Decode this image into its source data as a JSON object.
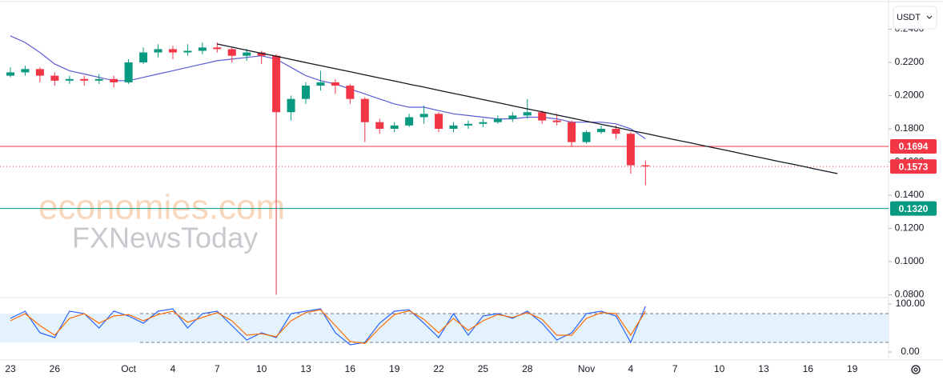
{
  "chart_data": {
    "type": "candlestick",
    "currency": "USDT",
    "watermark": [
      "economies.com",
      "FXNewsToday"
    ],
    "up_color": "#089981",
    "down_color": "#f23645",
    "categories": [
      "23",
      null,
      null,
      "26",
      null,
      null,
      null,
      null,
      "Oct",
      null,
      null,
      "4",
      null,
      null,
      "7",
      null,
      null,
      "10",
      null,
      null,
      "13",
      null,
      null,
      "16",
      null,
      null,
      "19",
      null,
      null,
      "22",
      null,
      null,
      "25",
      null,
      null,
      "28",
      null,
      null,
      null,
      "Nov",
      null,
      null,
      "4",
      null,
      null,
      "7",
      null,
      null,
      "10",
      null,
      null,
      "13",
      null,
      null,
      "16",
      null,
      null,
      "19"
    ],
    "open": [
      0.212,
      0.214,
      0.216,
      0.212,
      0.209,
      0.21,
      0.209,
      0.21,
      0.208,
      0.22,
      0.226,
      0.228,
      0.226,
      0.227,
      0.229,
      0.228,
      0.224,
      0.226,
      0.224,
      0.19,
      0.198,
      0.206,
      0.208,
      0.206,
      0.198,
      0.184,
      0.18,
      0.182,
      0.187,
      0.189,
      0.18,
      0.182,
      0.183,
      0.184,
      0.186,
      0.188,
      0.19,
      0.185,
      0.184,
      0.172,
      0.178,
      0.18,
      0.177,
      0.158,
      null,
      null,
      null,
      null,
      null,
      null,
      null,
      null,
      null,
      null,
      null,
      null,
      null,
      null
    ],
    "high": [
      0.217,
      0.218,
      0.217,
      0.214,
      0.212,
      0.212,
      0.213,
      0.212,
      0.222,
      0.229,
      0.231,
      0.23,
      0.231,
      0.232,
      0.232,
      0.229,
      0.228,
      0.227,
      0.225,
      0.2,
      0.208,
      0.215,
      0.21,
      0.207,
      0.199,
      0.186,
      0.184,
      0.189,
      0.194,
      0.19,
      0.184,
      0.185,
      0.186,
      0.188,
      0.19,
      0.198,
      0.191,
      0.189,
      0.185,
      0.179,
      0.182,
      0.182,
      0.178,
      0.161,
      null,
      null,
      null,
      null,
      null,
      null,
      null,
      null,
      null,
      null,
      null,
      null,
      null,
      null
    ],
    "low": [
      0.211,
      0.212,
      0.208,
      0.206,
      0.207,
      0.206,
      0.207,
      0.205,
      0.207,
      0.219,
      0.223,
      0.222,
      0.224,
      0.225,
      0.226,
      0.22,
      0.221,
      0.219,
      0.08,
      0.185,
      0.195,
      0.203,
      0.201,
      0.195,
      0.172,
      0.177,
      0.178,
      0.181,
      0.183,
      0.178,
      0.178,
      0.18,
      0.181,
      0.183,
      0.184,
      0.186,
      0.183,
      0.182,
      0.169,
      0.171,
      0.177,
      0.174,
      0.153,
      0.146,
      null,
      null,
      null,
      null,
      null,
      null,
      null,
      null,
      null,
      null,
      null,
      null,
      null,
      null
    ],
    "close": [
      0.214,
      0.216,
      0.212,
      0.209,
      0.21,
      0.209,
      0.21,
      0.208,
      0.22,
      0.226,
      0.228,
      0.226,
      0.227,
      0.229,
      0.228,
      0.224,
      0.226,
      0.224,
      0.19,
      0.198,
      0.206,
      0.208,
      0.206,
      0.198,
      0.184,
      0.18,
      0.182,
      0.187,
      0.189,
      0.18,
      0.182,
      0.183,
      0.184,
      0.186,
      0.188,
      0.19,
      0.185,
      0.184,
      0.172,
      0.178,
      0.18,
      0.177,
      0.158,
      0.1573,
      null,
      null,
      null,
      null,
      null,
      null,
      null,
      null,
      null,
      null,
      null,
      null,
      null,
      null
    ],
    "moving_average": {
      "color": "#5b5bd6",
      "values": [
        0.236,
        0.232,
        0.226,
        0.219,
        0.215,
        0.213,
        0.211,
        0.209,
        0.209,
        0.211,
        0.213,
        0.215,
        0.217,
        0.219,
        0.221,
        0.222,
        0.223,
        0.224,
        0.222,
        0.217,
        0.212,
        0.209,
        0.207,
        0.204,
        0.201,
        0.198,
        0.195,
        0.193,
        0.193,
        0.191,
        0.189,
        0.188,
        0.187,
        0.186,
        0.186,
        0.187,
        0.187,
        0.186,
        0.184,
        0.184,
        0.184,
        0.183,
        0.18,
        0.174,
        null,
        null,
        null,
        null,
        null,
        null,
        null,
        null,
        null,
        null,
        null,
        null,
        null,
        null
      ]
    },
    "trendline": {
      "color": "#131722",
      "values": [
        null,
        null,
        null,
        null,
        null,
        null,
        null,
        null,
        null,
        null,
        null,
        null,
        null,
        null,
        0.2311,
        0.2292,
        0.2274,
        0.2255,
        0.2237,
        0.2218,
        0.2199,
        0.2181,
        0.2162,
        0.2144,
        0.2125,
        0.2106,
        0.2088,
        0.2069,
        0.2051,
        0.2032,
        0.2013,
        0.1995,
        0.1976,
        0.1958,
        0.1939,
        0.192,
        0.1902,
        0.1883,
        0.1865,
        0.1846,
        0.1827,
        0.1809,
        0.179,
        0.1772,
        0.1753,
        0.1734,
        0.1716,
        0.1697,
        0.1679,
        0.166,
        0.1641,
        0.1623,
        0.1604,
        0.1586,
        0.1567,
        0.1548,
        0.153,
        null
      ]
    },
    "hlines": [
      {
        "value": 0.1694,
        "label": "0.1694",
        "color": "#f23645",
        "style": "solid"
      },
      {
        "value": 0.1573,
        "label": "0.1573",
        "color": "#f23645",
        "style": "dotted"
      },
      {
        "value": 0.132,
        "label": "0.1320",
        "color": "#089981",
        "style": "solid"
      }
    ],
    "ylim": [
      0.0783,
      0.2576
    ],
    "yticks": [
      {
        "value": 0.24,
        "label": "0.2400"
      },
      {
        "value": 0.22,
        "label": "0.2200"
      },
      {
        "value": 0.2,
        "label": "0.2000"
      },
      {
        "value": 0.18,
        "label": "0.1800"
      },
      {
        "value": 0.16,
        "label": "0.1600"
      },
      {
        "value": 0.14,
        "label": "0.1400"
      },
      {
        "value": 0.12,
        "label": "0.1200"
      },
      {
        "value": 0.1,
        "label": "0.1000"
      },
      {
        "value": 0.08,
        "label": "0.0800"
      }
    ],
    "stochastic": {
      "ylim": [
        -16.7,
        113.3
      ],
      "yticks": [
        {
          "value": 100,
          "label": "100.00"
        },
        {
          "value": 0,
          "label": "0.00"
        }
      ],
      "levels": [
        20,
        80
      ],
      "band_color": "#e3f2fd",
      "series": [
        {
          "color": "#2962ff",
          "values": [
            70,
            85,
            40,
            30,
            85,
            80,
            50,
            85,
            75,
            60,
            85,
            90,
            50,
            80,
            85,
            55,
            25,
            40,
            30,
            80,
            85,
            90,
            40,
            15,
            20,
            60,
            85,
            88,
            60,
            30,
            80,
            35,
            75,
            80,
            70,
            85,
            60,
            25,
            40,
            80,
            85,
            75,
            20,
            95,
            null,
            null,
            null,
            null,
            null,
            null,
            null,
            null,
            null,
            null,
            null,
            null,
            null,
            null
          ]
        },
        {
          "color": "#ff6d00",
          "values": [
            65,
            80,
            55,
            35,
            70,
            80,
            60,
            75,
            78,
            65,
            78,
            85,
            62,
            72,
            82,
            65,
            35,
            38,
            32,
            65,
            82,
            88,
            55,
            22,
            18,
            50,
            78,
            86,
            68,
            40,
            70,
            45,
            65,
            78,
            72,
            82,
            68,
            35,
            35,
            70,
            82,
            80,
            35,
            85,
            null,
            null,
            null,
            null,
            null,
            null,
            null,
            null,
            null,
            null,
            null,
            null,
            null,
            null
          ]
        }
      ]
    }
  }
}
